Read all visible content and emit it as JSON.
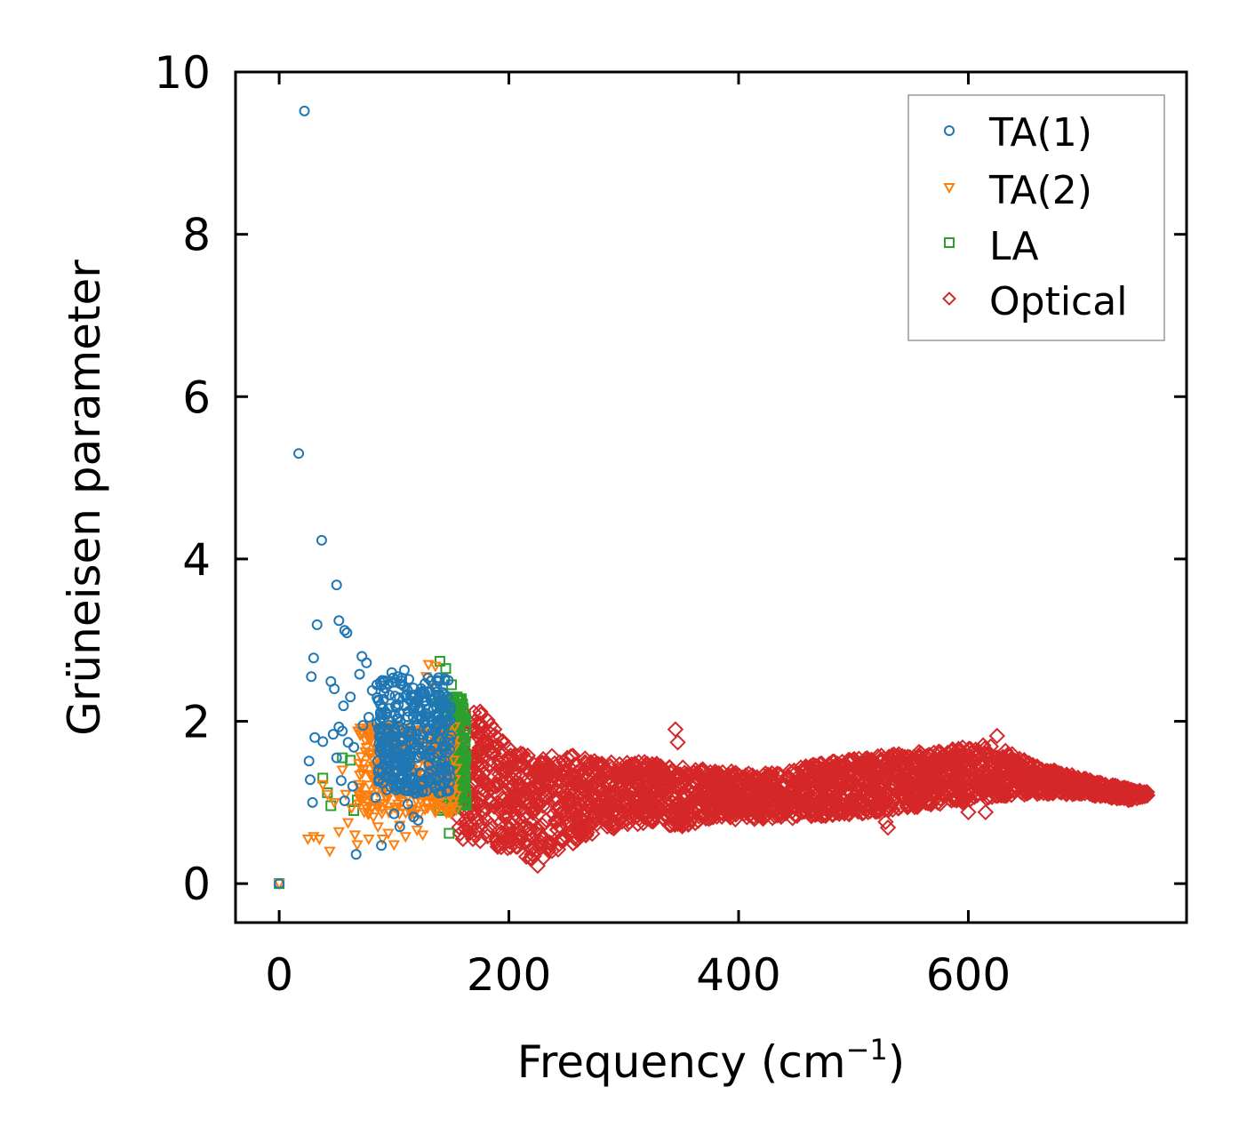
{
  "chart_data": {
    "type": "scatter",
    "title": "",
    "xlabel": "Frequency (cm",
    "xlabel_sup": "−1",
    "xlabel_close": ")",
    "ylabel": "Grüneisen parameter",
    "xlim": [
      -38,
      790
    ],
    "ylim": [
      -0.48,
      10
    ],
    "xticks": [
      0,
      200,
      400,
      600
    ],
    "yticks": [
      0,
      2,
      4,
      6,
      8,
      10
    ],
    "grid": false,
    "legend_position": "top-right",
    "series": [
      {
        "name": "TA(1)",
        "marker": "circle",
        "color": "#1f77b4",
        "points": [
          [
            0,
            0.0
          ],
          [
            22,
            9.52
          ],
          [
            17,
            5.3
          ],
          [
            37,
            4.23
          ],
          [
            50,
            3.68
          ],
          [
            52,
            3.24
          ],
          [
            57,
            3.12
          ],
          [
            59,
            3.09
          ],
          [
            33,
            3.19
          ],
          [
            30,
            2.78
          ],
          [
            28,
            2.55
          ],
          [
            45,
            2.49
          ],
          [
            48,
            2.4
          ],
          [
            56,
            2.19
          ],
          [
            62,
            2.3
          ],
          [
            72,
            2.8
          ],
          [
            76,
            2.72
          ],
          [
            70,
            2.58
          ],
          [
            26,
            1.51
          ],
          [
            27,
            1.28
          ],
          [
            29,
            1.0
          ],
          [
            31,
            1.8
          ],
          [
            38,
            1.75
          ],
          [
            47,
            1.84
          ],
          [
            52,
            1.93
          ],
          [
            55,
            1.88
          ],
          [
            60,
            1.74
          ],
          [
            65,
            1.68
          ],
          [
            50,
            1.55
          ],
          [
            54,
            1.27
          ],
          [
            57,
            1.02
          ],
          [
            64,
            1.2
          ],
          [
            67,
            0.36
          ],
          [
            73,
            1.95
          ],
          [
            78,
            2.05
          ],
          [
            81,
            2.38
          ],
          [
            85,
            2.45
          ],
          [
            88,
            2.48
          ],
          [
            92,
            2.5
          ],
          [
            98,
            2.6
          ],
          [
            103,
            2.55
          ],
          [
            109,
            2.63
          ],
          [
            84,
            1.06
          ],
          [
            89,
            0.47
          ],
          [
            95,
            1.5
          ],
          [
            100,
            0.86
          ],
          [
            105,
            0.7
          ],
          [
            112,
            0.98
          ],
          [
            117,
            0.82
          ],
          [
            121,
            0.78
          ]
        ],
        "clusters": [
          {
            "x_range": [
              85,
              150
            ],
            "y_range": [
              1.1,
              2.55
            ],
            "count": 380
          }
        ]
      },
      {
        "name": "TA(2)",
        "marker": "triangle-down",
        "color": "#ff7f0e",
        "points": [
          [
            0,
            0.0
          ],
          [
            25,
            0.55
          ],
          [
            30,
            0.58
          ],
          [
            35,
            0.55
          ],
          [
            38,
            1.22
          ],
          [
            42,
            1.1
          ],
          [
            44,
            0.4
          ],
          [
            48,
            1.0
          ],
          [
            52,
            0.64
          ],
          [
            55,
            1.4
          ],
          [
            58,
            1.1
          ],
          [
            60,
            0.75
          ],
          [
            63,
            0.93
          ],
          [
            66,
            0.6
          ],
          [
            68,
            0.48
          ],
          [
            71,
            1.02
          ],
          [
            74,
            0.88
          ],
          [
            78,
            0.55
          ],
          [
            82,
            0.82
          ],
          [
            86,
            0.7
          ],
          [
            90,
            0.55
          ],
          [
            95,
            0.62
          ],
          [
            100,
            0.48
          ],
          [
            105,
            0.72
          ],
          [
            110,
            0.58
          ],
          [
            115,
            0.85
          ],
          [
            120,
            0.66
          ],
          [
            125,
            0.6
          ],
          [
            130,
            2.7
          ],
          [
            136,
            2.68
          ],
          [
            128,
            2.55
          ],
          [
            134,
            2.42
          ]
        ],
        "clusters": [
          {
            "x_range": [
              68,
              155
            ],
            "y_range": [
              0.85,
              1.95
            ],
            "count": 320
          }
        ]
      },
      {
        "name": "LA",
        "marker": "square",
        "color": "#2ca02c",
        "points": [
          [
            0,
            0.0
          ],
          [
            38,
            1.3
          ],
          [
            42,
            1.12
          ],
          [
            45,
            0.96
          ],
          [
            55,
            1.55
          ],
          [
            62,
            1.52
          ],
          [
            65,
            0.9
          ],
          [
            68,
            1.03
          ],
          [
            140,
            2.74
          ],
          [
            145,
            2.65
          ],
          [
            150,
            2.45
          ],
          [
            148,
            0.62
          ],
          [
            153,
            0.92
          ],
          [
            155,
            2.3
          ]
        ],
        "clusters": [
          {
            "x_range": [
              138,
              163
            ],
            "y_range": [
              0.9,
              2.3
            ],
            "count": 260
          }
        ]
      },
      {
        "name": "Optical",
        "marker": "diamond",
        "color": "#d62728",
        "points": [
          [
            345,
            1.9
          ],
          [
            347,
            1.74
          ],
          [
            160,
            2.1
          ],
          [
            175,
            2.12
          ],
          [
            225,
            0.22
          ],
          [
            230,
            0.32
          ],
          [
            530,
            0.69
          ],
          [
            528,
            0.76
          ],
          [
            600,
            0.88
          ],
          [
            615,
            0.88
          ],
          [
            625,
            1.82
          ],
          [
            160,
            0.55
          ]
        ],
        "envelope": [
          {
            "x": 155,
            "low": 0.6,
            "high": 2.25
          },
          {
            "x": 180,
            "low": 0.5,
            "high": 2.05
          },
          {
            "x": 200,
            "low": 0.4,
            "high": 1.7
          },
          {
            "x": 225,
            "low": 0.28,
            "high": 1.55
          },
          {
            "x": 250,
            "low": 0.45,
            "high": 1.6
          },
          {
            "x": 280,
            "low": 0.65,
            "high": 1.5
          },
          {
            "x": 320,
            "low": 0.75,
            "high": 1.5
          },
          {
            "x": 350,
            "low": 0.7,
            "high": 1.45
          },
          {
            "x": 380,
            "low": 0.8,
            "high": 1.4
          },
          {
            "x": 420,
            "low": 0.78,
            "high": 1.35
          },
          {
            "x": 460,
            "low": 0.82,
            "high": 1.45
          },
          {
            "x": 500,
            "low": 0.85,
            "high": 1.55
          },
          {
            "x": 540,
            "low": 0.92,
            "high": 1.6
          },
          {
            "x": 580,
            "low": 0.98,
            "high": 1.65
          },
          {
            "x": 620,
            "low": 1.05,
            "high": 1.72
          },
          {
            "x": 660,
            "low": 1.1,
            "high": 1.45
          },
          {
            "x": 700,
            "low": 1.1,
            "high": 1.3
          },
          {
            "x": 740,
            "low": 1.03,
            "high": 1.17
          },
          {
            "x": 756,
            "low": 1.08,
            "high": 1.13
          }
        ],
        "cluster_count": 2600
      }
    ]
  }
}
